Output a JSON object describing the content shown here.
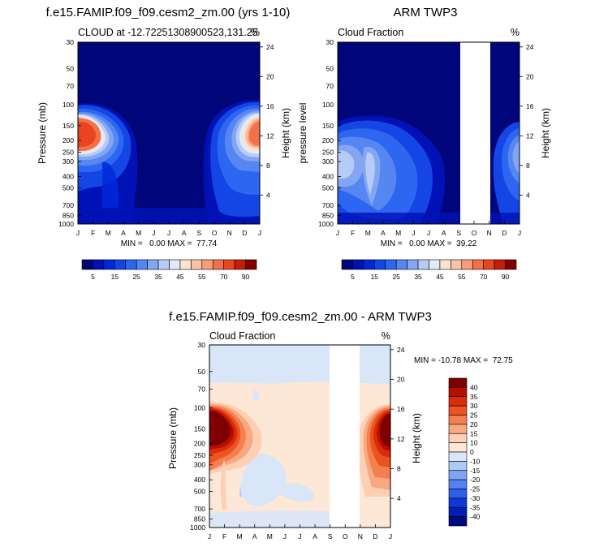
{
  "chart_data": [
    {
      "type": "heatmap",
      "title": "f.e15.FAMIP.f09_f09.cesm2_zm.00 (yrs 1-10)",
      "left_label": "CLOUD at -12.7225130890052​3,131.25",
      "right_label": "%",
      "ylabel": "Pressure (mb)",
      "ylabel_right": "Height (km)",
      "xlabel": "",
      "x": [
        "J",
        "F",
        "M",
        "A",
        "M",
        "J",
        "J",
        "A",
        "S",
        "O",
        "N",
        "D",
        "J"
      ],
      "pressure_ticks": [
        "30",
        "50",
        "70",
        "100",
        "150",
        "200",
        "250",
        "300",
        "400",
        "500",
        "700",
        "850",
        "1000"
      ],
      "height_ticks": [
        "24",
        "20",
        "16",
        "12",
        "8",
        "4"
      ],
      "ylim": [
        1000,
        30
      ],
      "min": "0.00",
      "max": "77.74",
      "minmax_text": "MIN =   0.00 MAX =  77.74",
      "colorbar_labels": [
        "5",
        "15",
        "25",
        "35",
        "45",
        "55",
        "70",
        "90"
      ],
      "missing_months": []
    },
    {
      "type": "heatmap",
      "title": "ARM TWP3",
      "left_label": "Cloud Fraction",
      "right_label": "%",
      "ylabel": "pressure level",
      "ylabel_right": "Height (km)",
      "xlabel": "",
      "x": [
        "J",
        "F",
        "M",
        "A",
        "M",
        "J",
        "J",
        "A",
        "S",
        "O",
        "N",
        "D",
        "J"
      ],
      "pressure_ticks": [
        "30",
        "50",
        "70",
        "100",
        "150",
        "200",
        "250",
        "300",
        "400",
        "500",
        "700",
        "850",
        "1000"
      ],
      "height_ticks": [
        "24",
        "20",
        "16",
        "12",
        "8",
        "4"
      ],
      "ylim": [
        1000,
        30
      ],
      "min": "0.00",
      "max": "39.22",
      "minmax_text": "MIN =   0.00 MAX =  39.22",
      "colorbar_labels": [
        "5",
        "15",
        "25",
        "35",
        "45",
        "55",
        "70",
        "90"
      ],
      "missing_months": [
        "O"
      ]
    },
    {
      "type": "heatmap",
      "title": "f.e15.FAMIP.f09_f09.cesm2_zm.00 - ARM TWP3",
      "left_label": "Cloud Fraction",
      "right_label": "%",
      "ylabel": "Pressure (mb)",
      "ylabel_right": "Height (km)",
      "xlabel": "",
      "x": [
        "J",
        "F",
        "M",
        "A",
        "M",
        "J",
        "J",
        "A",
        "S",
        "O",
        "N",
        "D",
        "J"
      ],
      "pressure_ticks": [
        "30",
        "50",
        "70",
        "100",
        "150",
        "200",
        "250",
        "300",
        "400",
        "500",
        "700",
        "850",
        "1000"
      ],
      "height_ticks": [
        "24",
        "20",
        "16",
        "12",
        "8",
        "4"
      ],
      "ylim": [
        1000,
        30
      ],
      "min": "-10.78",
      "max": "72.75",
      "minmax_text": "MIN = -10.78 MAX =  72.75",
      "colorbar_labels": [
        "40",
        "35",
        "30",
        "25",
        "20",
        "15",
        "10",
        "0",
        "-10",
        "-15",
        "-20",
        "-25",
        "-30",
        "-35",
        "-40"
      ],
      "missing_months": [
        "O"
      ]
    }
  ],
  "colors": {
    "seq_palette": [
      "#00067a",
      "#0012b5",
      "#0028d8",
      "#1446e6",
      "#2d66f0",
      "#5686f2",
      "#83a6f4",
      "#b6ccf6",
      "#e1ebf8",
      "#fde3cf",
      "#fbc3a4",
      "#f89d77",
      "#f37049",
      "#e84520",
      "#c71d08",
      "#820000"
    ],
    "div_palette_top_to_bottom": [
      "#7f0000",
      "#b50f00",
      "#da2c06",
      "#ec5222",
      "#f5804f",
      "#f9a982",
      "#fdcfb4",
      "#fde8d8",
      "#d8e6f8",
      "#afc9f5",
      "#80a4f3",
      "#5682f1",
      "#2d5fe9",
      "#0d3ad7",
      "#0020b0",
      "#000a80"
    ],
    "background_field": "#00067a",
    "missing_fill": "#ffffff"
  }
}
